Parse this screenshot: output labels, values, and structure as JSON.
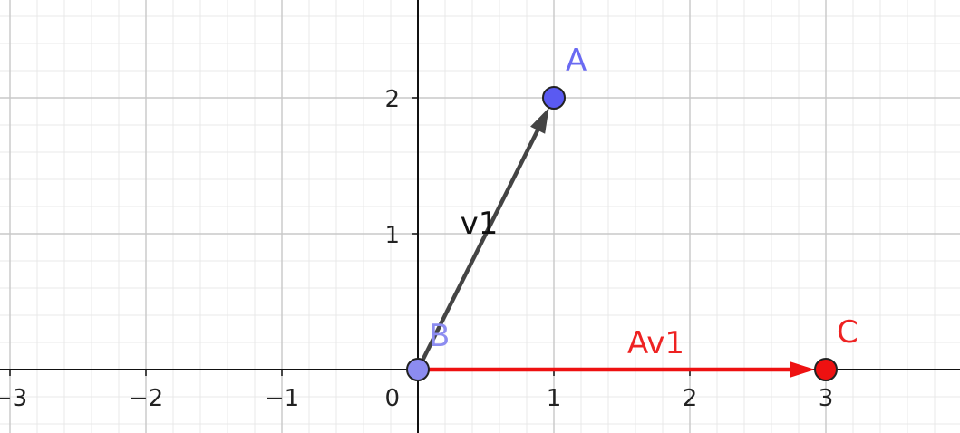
{
  "plot": {
    "x_range": [
      -3,
      4
    ],
    "y_range": [
      -0.2,
      2.75
    ],
    "major_step": 1,
    "minor_step": 0.2,
    "grid": true,
    "x_ticks": [
      {
        "value": -3,
        "label": "−3"
      },
      {
        "value": -2,
        "label": "−2"
      },
      {
        "value": -1,
        "label": "−1"
      },
      {
        "value": 1,
        "label": "1"
      },
      {
        "value": 2,
        "label": "2"
      },
      {
        "value": 3,
        "label": "3"
      }
    ],
    "y_ticks": [
      {
        "value": 1,
        "label": "1"
      },
      {
        "value": 2,
        "label": "2"
      }
    ],
    "origin_label": "0"
  },
  "points": [
    {
      "id": "A",
      "label": "A",
      "x": 1,
      "y": 2,
      "fill": "#5a5af2",
      "label_color": "#6a6af2"
    },
    {
      "id": "B",
      "label": "B",
      "x": 0,
      "y": 0,
      "fill": "#8c8cf0",
      "label_color": "#8c8cf0"
    },
    {
      "id": "C",
      "label": "C",
      "x": 3,
      "y": 0,
      "fill": "#ee1111",
      "label_color": "#ee2222"
    }
  ],
  "vectors": [
    {
      "id": "v1",
      "label": "v1",
      "from": [
        0,
        0
      ],
      "to": [
        1,
        2
      ],
      "color": "#444444",
      "label_color": "#111111"
    },
    {
      "id": "Av1",
      "label": "Av1",
      "from": [
        0,
        0
      ],
      "to": [
        3,
        0
      ],
      "color": "#ee1111",
      "label_color": "#ee2222"
    }
  ],
  "colors": {
    "axis": "#111111",
    "major_grid": "#c8c8c8",
    "minor_grid": "#e8e8e8",
    "background": "#ffffff"
  }
}
